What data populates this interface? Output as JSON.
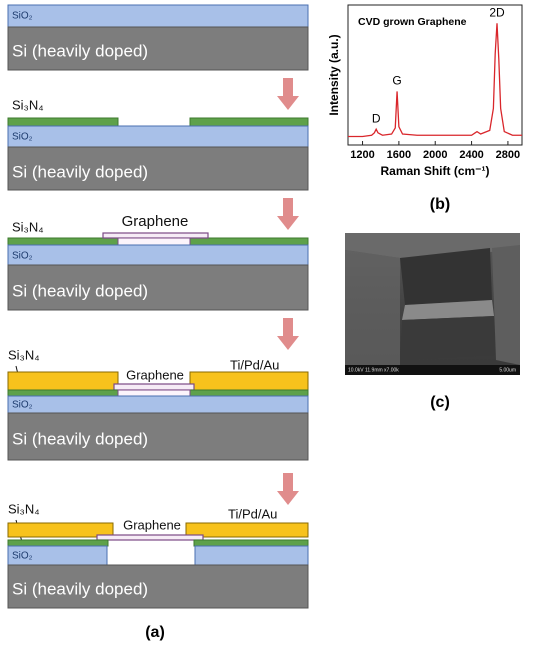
{
  "diagram": {
    "steps": [
      {
        "sio2": "SiO₂",
        "si": "Si (heavily doped)"
      },
      {
        "si3n4": "Si₃N₄",
        "sio2": "SiO₂",
        "si": "Si (heavily doped)"
      },
      {
        "si3n4": "Si₃N₄",
        "graphene": "Graphene",
        "sio2": "SiO₂",
        "si": "Si (heavily doped)"
      },
      {
        "si3n4": "Si₃N₄",
        "graphene": "Graphene",
        "metal": "Ti/Pd/Au",
        "sio2": "SiO₂",
        "si": "Si (heavily doped)"
      },
      {
        "si3n4": "Si₃N₄",
        "graphene": "Graphene",
        "metal": "Ti/Pd/Au",
        "sio2": "SiO₂",
        "si": "Si (heavily doped)"
      }
    ],
    "label": "(a)"
  },
  "chart_data": {
    "type": "line",
    "title": "CVD grown Graphene",
    "xlabel": "Raman Shift (cm⁻¹)",
    "ylabel": "Intensity (a.u.)",
    "x": [
      1040,
      1200,
      1300,
      1330,
      1350,
      1370,
      1420,
      1520,
      1560,
      1580,
      1600,
      1640,
      1800,
      2000,
      2200,
      2400,
      2440,
      2460,
      2500,
      2600,
      2640,
      2660,
      2680,
      2700,
      2720,
      2760,
      2850,
      2955
    ],
    "series": [
      {
        "color": "#d9262b",
        "values": [
          0.07,
          0.07,
          0.08,
          0.1,
          0.13,
          0.1,
          0.08,
          0.09,
          0.14,
          0.44,
          0.15,
          0.09,
          0.08,
          0.08,
          0.08,
          0.08,
          0.1,
          0.11,
          0.09,
          0.12,
          0.3,
          0.75,
          1.0,
          0.7,
          0.3,
          0.11,
          0.08,
          0.08
        ]
      }
    ],
    "xlim": [
      1040,
      2955
    ],
    "ylim": [
      0,
      1.15
    ],
    "xticks": [
      1200,
      1600,
      2000,
      2400,
      2800
    ],
    "annotations": [
      {
        "text": "D",
        "x": 1350
      },
      {
        "text": "G",
        "x": 1580
      },
      {
        "text": "2D",
        "x": 2680
      }
    ],
    "label": "(b)"
  },
  "sem": {
    "info": "10.0kV 11.9mm x7.00k",
    "scale": "5.00um",
    "label": "(c)"
  }
}
